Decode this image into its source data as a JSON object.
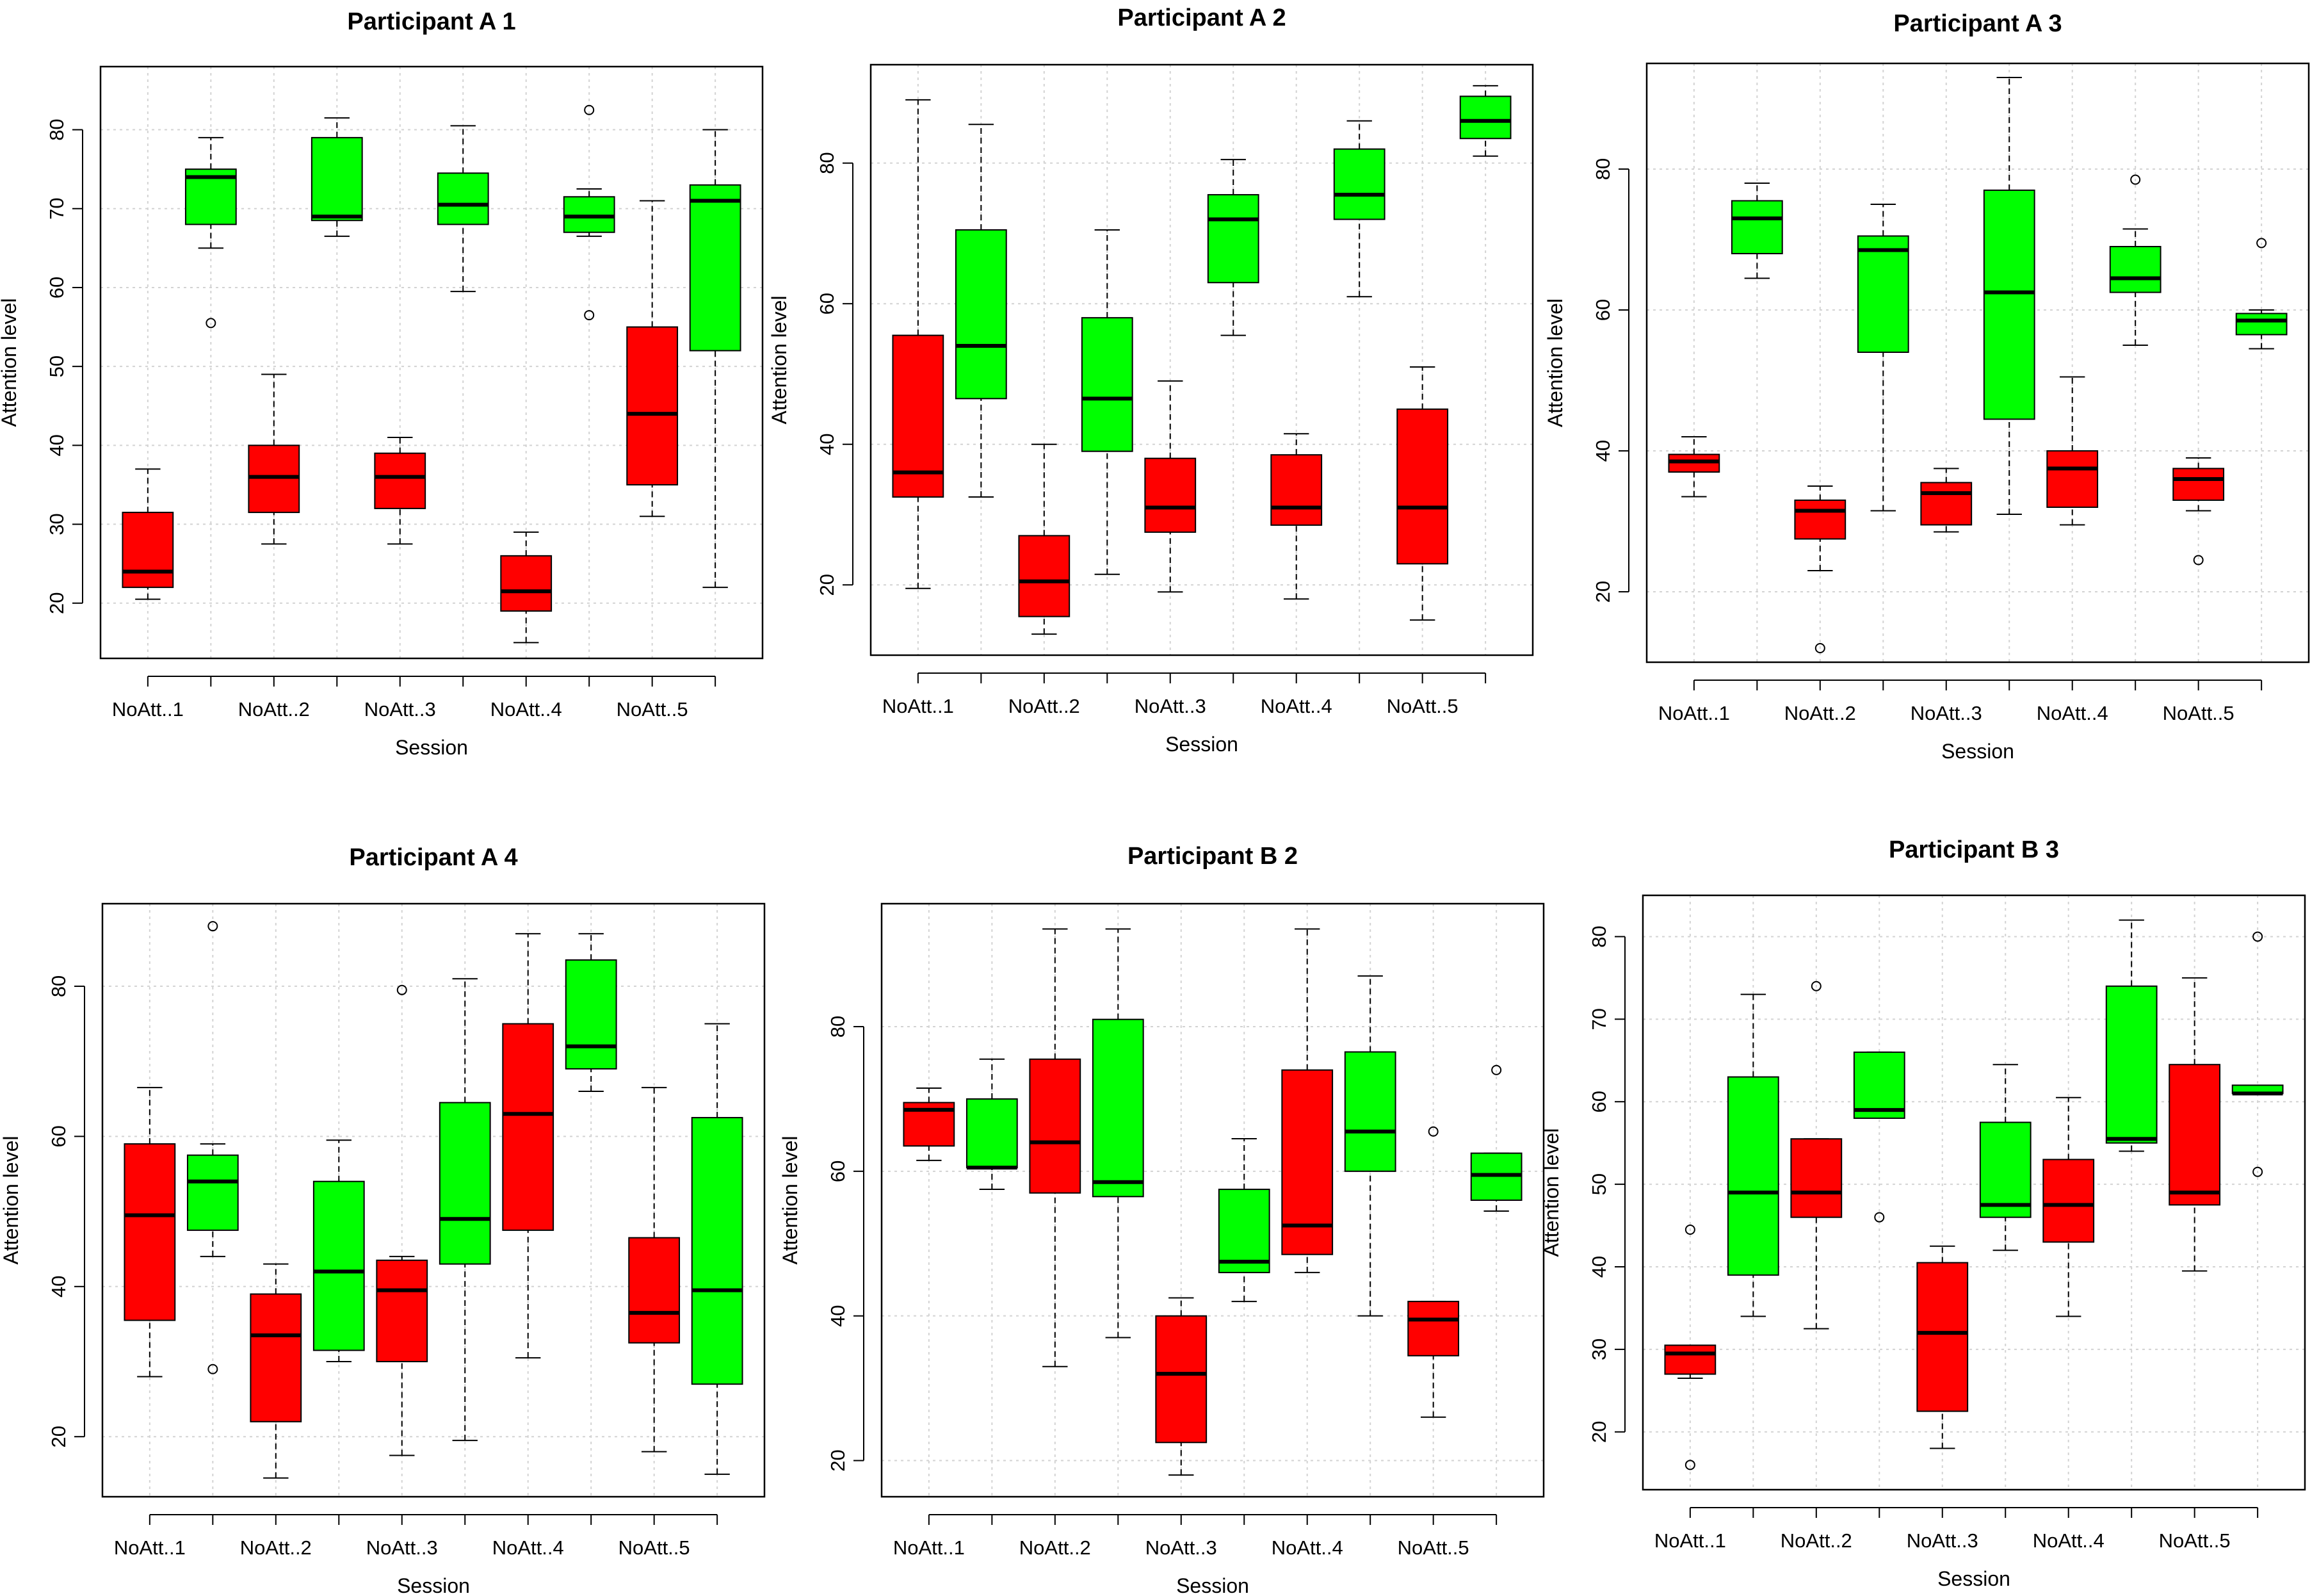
{
  "chart_data": [
    {
      "type": "boxplot",
      "title": "Participant A 1",
      "xlabel": "Session",
      "ylabel": "Attention level",
      "ylim": [
        13,
        88
      ],
      "yticks": [
        20,
        30,
        40,
        50,
        60,
        70,
        80
      ],
      "categories": [
        "NoAtt..1",
        "NoAtt..2",
        "NoAtt..3",
        "NoAtt..4",
        "NoAtt..5"
      ],
      "colors": {
        "no_attention": "#ff0000",
        "attention": "#00ff00"
      },
      "boxes": [
        {
          "group": "no_attention",
          "whisker_low": 20.5,
          "q1": 22,
          "median": 24,
          "q3": 31.5,
          "whisker_high": 37,
          "outliers": []
        },
        {
          "group": "attention",
          "whisker_low": 65,
          "q1": 68,
          "median": 74,
          "q3": 75,
          "whisker_high": 79,
          "outliers": [
            55.5
          ]
        },
        {
          "group": "no_attention",
          "whisker_low": 27.5,
          "q1": 31.5,
          "median": 36,
          "q3": 40,
          "whisker_high": 49,
          "outliers": []
        },
        {
          "group": "attention",
          "whisker_low": 66.5,
          "q1": 68.5,
          "median": 69,
          "q3": 79,
          "whisker_high": 81.5,
          "outliers": []
        },
        {
          "group": "no_attention",
          "whisker_low": 27.5,
          "q1": 32,
          "median": 36,
          "q3": 39,
          "whisker_high": 41,
          "outliers": []
        },
        {
          "group": "attention",
          "whisker_low": 59.5,
          "q1": 68,
          "median": 70.5,
          "q3": 74.5,
          "whisker_high": 80.5,
          "outliers": []
        },
        {
          "group": "no_attention",
          "whisker_low": 15,
          "q1": 19,
          "median": 21.5,
          "q3": 26,
          "whisker_high": 29,
          "outliers": []
        },
        {
          "group": "attention",
          "whisker_low": 66.5,
          "q1": 67,
          "median": 69,
          "q3": 71.5,
          "whisker_high": 72.5,
          "outliers": [
            82.5,
            56.5
          ]
        },
        {
          "group": "no_attention",
          "whisker_low": 31,
          "q1": 35,
          "median": 44,
          "q3": 55,
          "whisker_high": 71,
          "outliers": []
        },
        {
          "group": "attention",
          "whisker_low": 22,
          "q1": 52,
          "median": 71,
          "q3": 73,
          "whisker_high": 80,
          "outliers": []
        }
      ]
    },
    {
      "type": "boxplot",
      "title": "Participant A 2",
      "xlabel": "Session",
      "ylabel": "Attention level",
      "ylim": [
        10,
        94
      ],
      "yticks": [
        20,
        40,
        60,
        80
      ],
      "categories": [
        "NoAtt..1",
        "NoAtt..2",
        "NoAtt..3",
        "NoAtt..4",
        "NoAtt..5"
      ],
      "colors": {
        "no_attention": "#ff0000",
        "attention": "#00ff00"
      },
      "boxes": [
        {
          "group": "no_attention",
          "whisker_low": 19.5,
          "q1": 32.5,
          "median": 36,
          "q3": 55.5,
          "whisker_high": 89,
          "outliers": []
        },
        {
          "group": "attention",
          "whisker_low": 32.5,
          "q1": 46.5,
          "median": 54,
          "q3": 70.5,
          "whisker_high": 85.5,
          "outliers": []
        },
        {
          "group": "no_attention",
          "whisker_low": 13,
          "q1": 15.5,
          "median": 20.5,
          "q3": 27,
          "whisker_high": 40,
          "outliers": []
        },
        {
          "group": "attention",
          "whisker_low": 21.5,
          "q1": 39,
          "median": 46.5,
          "q3": 58,
          "whisker_high": 70.5,
          "outliers": []
        },
        {
          "group": "no_attention",
          "whisker_low": 19,
          "q1": 27.5,
          "median": 31,
          "q3": 38,
          "whisker_high": 49,
          "outliers": []
        },
        {
          "group": "attention",
          "whisker_low": 55.5,
          "q1": 63,
          "median": 72,
          "q3": 75.5,
          "whisker_high": 80.5,
          "outliers": []
        },
        {
          "group": "no_attention",
          "whisker_low": 18,
          "q1": 28.5,
          "median": 31,
          "q3": 38.5,
          "whisker_high": 41.5,
          "outliers": []
        },
        {
          "group": "attention",
          "whisker_low": 61,
          "q1": 72,
          "median": 75.5,
          "q3": 82,
          "whisker_high": 86,
          "outliers": []
        },
        {
          "group": "no_attention",
          "whisker_low": 15,
          "q1": 23,
          "median": 31,
          "q3": 45,
          "whisker_high": 51,
          "outliers": []
        },
        {
          "group": "attention",
          "whisker_low": 81,
          "q1": 83.5,
          "median": 86,
          "q3": 89.5,
          "whisker_high": 91,
          "outliers": []
        }
      ]
    },
    {
      "type": "boxplot",
      "title": "Participant A 3",
      "xlabel": "Session",
      "ylabel": "Attention level",
      "ylim": [
        10,
        95
      ],
      "yticks": [
        20,
        40,
        60,
        80
      ],
      "categories": [
        "NoAtt..1",
        "NoAtt..2",
        "NoAtt..3",
        "NoAtt..4",
        "NoAtt..5"
      ],
      "colors": {
        "no_attention": "#ff0000",
        "attention": "#00ff00"
      },
      "boxes": [
        {
          "group": "no_attention",
          "whisker_low": 33.5,
          "q1": 37,
          "median": 38.5,
          "q3": 39.5,
          "whisker_high": 42,
          "outliers": []
        },
        {
          "group": "attention",
          "whisker_low": 64.5,
          "q1": 68,
          "median": 73,
          "q3": 75.5,
          "whisker_high": 78,
          "outliers": []
        },
        {
          "group": "no_attention",
          "whisker_low": 23,
          "q1": 27.5,
          "median": 31.5,
          "q3": 33,
          "whisker_high": 35,
          "outliers": [
            12
          ]
        },
        {
          "group": "attention",
          "whisker_low": 31.5,
          "q1": 54,
          "median": 68.5,
          "q3": 70.5,
          "whisker_high": 75,
          "outliers": []
        },
        {
          "group": "no_attention",
          "whisker_low": 28.5,
          "q1": 29.5,
          "median": 34,
          "q3": 35.5,
          "whisker_high": 37.5,
          "outliers": []
        },
        {
          "group": "attention",
          "whisker_low": 31,
          "q1": 44.5,
          "median": 62.5,
          "q3": 77,
          "whisker_high": 93,
          "outliers": []
        },
        {
          "group": "no_attention",
          "whisker_low": 29.5,
          "q1": 32,
          "median": 37.5,
          "q3": 40,
          "whisker_high": 50.5,
          "outliers": []
        },
        {
          "group": "attention",
          "whisker_low": 55,
          "q1": 62.5,
          "median": 64.5,
          "q3": 69,
          "whisker_high": 71.5,
          "outliers": [
            78.5
          ]
        },
        {
          "group": "no_attention",
          "whisker_low": 31.5,
          "q1": 33,
          "median": 36,
          "q3": 37.5,
          "whisker_high": 39,
          "outliers": [
            24.5
          ]
        },
        {
          "group": "attention",
          "whisker_low": 54.5,
          "q1": 56.5,
          "median": 58.5,
          "q3": 59.5,
          "whisker_high": 60,
          "outliers": [
            69.5
          ]
        }
      ]
    },
    {
      "type": "boxplot",
      "title": "Participant A 4",
      "xlabel": "Session",
      "ylabel": "Attention level",
      "ylim": [
        12,
        91
      ],
      "yticks": [
        20,
        40,
        60,
        80
      ],
      "categories": [
        "NoAtt..1",
        "NoAtt..2",
        "NoAtt..3",
        "NoAtt..4",
        "NoAtt..5"
      ],
      "colors": {
        "no_attention": "#ff0000",
        "attention": "#00ff00"
      },
      "boxes": [
        {
          "group": "no_attention",
          "whisker_low": 28,
          "q1": 35.5,
          "median": 49.5,
          "q3": 59,
          "whisker_high": 66.5,
          "outliers": []
        },
        {
          "group": "attention",
          "whisker_low": 44,
          "q1": 47.5,
          "median": 54,
          "q3": 57.5,
          "whisker_high": 59,
          "outliers": [
            88,
            29
          ]
        },
        {
          "group": "no_attention",
          "whisker_low": 14.5,
          "q1": 22,
          "median": 33.5,
          "q3": 39,
          "whisker_high": 43,
          "outliers": []
        },
        {
          "group": "attention",
          "whisker_low": 30,
          "q1": 31.5,
          "median": 42,
          "q3": 54,
          "whisker_high": 59.5,
          "outliers": []
        },
        {
          "group": "no_attention",
          "whisker_low": 17.5,
          "q1": 30,
          "median": 39.5,
          "q3": 43.5,
          "whisker_high": 44,
          "outliers": [
            79.5
          ]
        },
        {
          "group": "attention",
          "whisker_low": 19.5,
          "q1": 43,
          "median": 49,
          "q3": 64.5,
          "whisker_high": 81,
          "outliers": []
        },
        {
          "group": "no_attention",
          "whisker_low": 30.5,
          "q1": 47.5,
          "median": 63,
          "q3": 75,
          "whisker_high": 87,
          "outliers": []
        },
        {
          "group": "attention",
          "whisker_low": 66,
          "q1": 69,
          "median": 72,
          "q3": 83.5,
          "whisker_high": 87,
          "outliers": []
        },
        {
          "group": "no_attention",
          "whisker_low": 18,
          "q1": 32.5,
          "median": 36.5,
          "q3": 46.5,
          "whisker_high": 66.5,
          "outliers": []
        },
        {
          "group": "attention",
          "whisker_low": 15,
          "q1": 27,
          "median": 39.5,
          "q3": 62.5,
          "whisker_high": 75,
          "outliers": []
        }
      ]
    },
    {
      "type": "boxplot",
      "title": "Participant B 2",
      "xlabel": "Session",
      "ylabel": "Attention level",
      "ylim": [
        15,
        97
      ],
      "yticks": [
        20,
        40,
        60,
        80
      ],
      "categories": [
        "NoAtt..1",
        "NoAtt..2",
        "NoAtt..3",
        "NoAtt..4",
        "NoAtt..5"
      ],
      "colors": {
        "no_attention": "#ff0000",
        "attention": "#00ff00"
      },
      "boxes": [
        {
          "group": "no_attention",
          "whisker_low": 61.5,
          "q1": 63.5,
          "median": 68.5,
          "q3": 69.5,
          "whisker_high": 71.5,
          "outliers": []
        },
        {
          "group": "attention",
          "whisker_low": 57.5,
          "q1": 60.5,
          "median": 60.5,
          "q3": 70,
          "whisker_high": 75.5,
          "outliers": []
        },
        {
          "group": "no_attention",
          "whisker_low": 33,
          "q1": 57,
          "median": 64,
          "q3": 75.5,
          "whisker_high": 93.5,
          "outliers": []
        },
        {
          "group": "attention",
          "whisker_low": 37,
          "q1": 56.5,
          "median": 58.5,
          "q3": 81,
          "whisker_high": 93.5,
          "outliers": []
        },
        {
          "group": "no_attention",
          "whisker_low": 18,
          "q1": 22.5,
          "median": 32,
          "q3": 40,
          "whisker_high": 42.5,
          "outliers": []
        },
        {
          "group": "attention",
          "whisker_low": 42,
          "q1": 46,
          "median": 47.5,
          "q3": 57.5,
          "whisker_high": 64.5,
          "outliers": []
        },
        {
          "group": "no_attention",
          "whisker_low": 46,
          "q1": 48.5,
          "median": 52.5,
          "q3": 74,
          "whisker_high": 93.5,
          "outliers": []
        },
        {
          "group": "attention",
          "whisker_low": 40,
          "q1": 60,
          "median": 65.5,
          "q3": 76.5,
          "whisker_high": 87,
          "outliers": []
        },
        {
          "group": "no_attention",
          "whisker_low": 26,
          "q1": 34.5,
          "median": 39.5,
          "q3": 42,
          "whisker_high": 42,
          "outliers": [
            65.5
          ]
        },
        {
          "group": "attention",
          "whisker_low": 54.5,
          "q1": 56,
          "median": 59.5,
          "q3": 62.5,
          "whisker_high": 62.5,
          "outliers": [
            74
          ]
        }
      ]
    },
    {
      "type": "boxplot",
      "title": "Participant B 3",
      "xlabel": "Session",
      "ylabel": "Attention level",
      "ylim": [
        13,
        85
      ],
      "yticks": [
        20,
        30,
        40,
        50,
        60,
        70,
        80
      ],
      "categories": [
        "NoAtt..1",
        "NoAtt..2",
        "NoAtt..3",
        "NoAtt..4",
        "NoAtt..5"
      ],
      "colors": {
        "no_attention": "#ff0000",
        "attention": "#00ff00"
      },
      "boxes": [
        {
          "group": "no_attention",
          "whisker_low": 26.5,
          "q1": 27,
          "median": 29.5,
          "q3": 30.5,
          "whisker_high": 30.5,
          "outliers": [
            44.5,
            16
          ]
        },
        {
          "group": "attention",
          "whisker_low": 34,
          "q1": 39,
          "median": 49,
          "q3": 63,
          "whisker_high": 73,
          "outliers": []
        },
        {
          "group": "no_attention",
          "whisker_low": 32.5,
          "q1": 46,
          "median": 49,
          "q3": 55.5,
          "whisker_high": 55.5,
          "outliers": [
            74
          ]
        },
        {
          "group": "attention",
          "whisker_low": 58,
          "q1": 58,
          "median": 59,
          "q3": 66,
          "whisker_high": 66,
          "outliers": [
            46
          ]
        },
        {
          "group": "no_attention",
          "whisker_low": 18,
          "q1": 22.5,
          "median": 32,
          "q3": 40.5,
          "whisker_high": 42.5,
          "outliers": []
        },
        {
          "group": "attention",
          "whisker_low": 42,
          "q1": 46,
          "median": 47.5,
          "q3": 57.5,
          "whisker_high": 64.5,
          "outliers": []
        },
        {
          "group": "no_attention",
          "whisker_low": 34,
          "q1": 43,
          "median": 47.5,
          "q3": 53,
          "whisker_high": 60.5,
          "outliers": []
        },
        {
          "group": "attention",
          "whisker_low": 54,
          "q1": 55,
          "median": 55.5,
          "q3": 74,
          "whisker_high": 82,
          "outliers": []
        },
        {
          "group": "no_attention",
          "whisker_low": 39.5,
          "q1": 47.5,
          "median": 49,
          "q3": 64.5,
          "whisker_high": 75,
          "outliers": []
        },
        {
          "group": "attention",
          "whisker_low": 61,
          "q1": 61,
          "median": 61,
          "q3": 62,
          "whisker_high": 62,
          "outliers": [
            80,
            51.5
          ]
        }
      ]
    }
  ]
}
